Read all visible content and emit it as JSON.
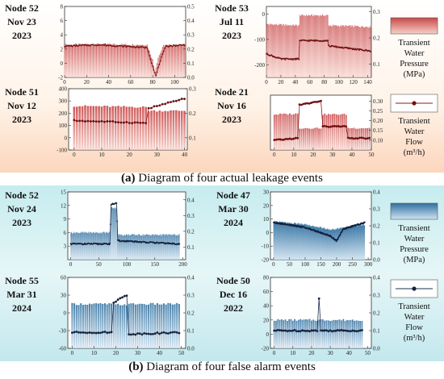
{
  "captions": {
    "a_letter": "(a)",
    "a_text": "Diagram of four actual leakage events",
    "b_letter": "(b)",
    "b_text": "Diagram of four false alarm events"
  },
  "legend_a": {
    "pressure_lines": [
      "Transient",
      "Water",
      "Pressure",
      "(MPa)"
    ],
    "flow_lines": [
      "Transient",
      "Water",
      "Flow",
      "(m³/h)"
    ]
  },
  "legend_b": {
    "pressure_lines": [
      "Transient",
      "Water",
      "Pressure",
      "(MPa)"
    ],
    "flow_lines": [
      "Transient",
      "Water",
      "Flow",
      "(m³/h)"
    ]
  },
  "colors": {
    "red_bar_top": "#c84848",
    "red_bar_bottom": "#f7d0c8",
    "red_flow_line": "#8b1a1a",
    "blue_bar_top": "#2f6fa0",
    "blue_bar_bottom": "#cfe3f0",
    "blue_flow_line": "#1b2f4f",
    "section_a_bg_top": "#fde2cf",
    "section_b_bg": "#c8ecef"
  },
  "chart_data": [
    {
      "type": "bar",
      "id": "a1",
      "label_lines": [
        "Node 52",
        "Nov 23",
        "2023"
      ],
      "x_ticks": [
        "0",
        "20",
        "40",
        "60",
        "80",
        "100"
      ],
      "xlim": [
        0,
        110
      ],
      "y_left_ticks": [
        "-2",
        "0",
        "2",
        "4",
        "6",
        "8"
      ],
      "ylim_left": [
        -2,
        8
      ],
      "y_right_ticks": [
        "0.0",
        "0.1",
        "0.2",
        "0.3",
        "0.4",
        "0.5"
      ],
      "ylim_right": [
        0,
        0.5
      ],
      "series": [
        {
          "role": "pressure",
          "n": 110,
          "values": [
            [
              0,
              2.6
            ],
            [
              30,
              2.7
            ],
            [
              75,
              2.6
            ],
            [
              80,
              0.5
            ],
            [
              82,
              -1.2
            ],
            [
              85,
              0.8
            ],
            [
              90,
              2.5
            ],
            [
              110,
              2.6
            ]
          ]
        },
        {
          "role": "flow",
          "n": 110,
          "values": [
            [
              0,
              0.22
            ],
            [
              30,
              0.23
            ],
            [
              75,
              0.21
            ],
            [
              80,
              0.08
            ],
            [
              83,
              0.01
            ],
            [
              87,
              0.12
            ],
            [
              92,
              0.22
            ],
            [
              110,
              0.23
            ]
          ]
        }
      ]
    },
    {
      "type": "bar",
      "id": "a2",
      "label_lines": [
        "Node 53",
        "Jul 11",
        "2023"
      ],
      "x_ticks": [
        "0",
        "20",
        "40",
        "60",
        "80",
        "100",
        "120",
        "140"
      ],
      "xlim": [
        0,
        145
      ],
      "y_left_ticks": [
        "-200",
        "-100",
        "0"
      ],
      "ylim_left": [
        -250,
        30
      ],
      "y_right_ticks": [
        "0.1",
        "0.2",
        "0.3"
      ],
      "ylim_right": [
        0.05,
        0.32
      ],
      "series": [
        {
          "role": "pressure",
          "n": 145,
          "values": [
            [
              0,
              -40
            ],
            [
              45,
              -45
            ],
            [
              46,
              -5
            ],
            [
              85,
              -5
            ],
            [
              86,
              -45
            ],
            [
              145,
              -50
            ]
          ]
        },
        {
          "role": "flow",
          "n": 145,
          "values": [
            [
              0,
              0.14
            ],
            [
              20,
              0.12
            ],
            [
              45,
              0.12
            ],
            [
              46,
              0.19
            ],
            [
              85,
              0.19
            ],
            [
              86,
              0.17
            ],
            [
              145,
              0.15
            ]
          ]
        }
      ]
    },
    {
      "type": "bar",
      "id": "a3",
      "label_lines": [
        "Node 51",
        "Nov 12",
        "2023"
      ],
      "x_ticks": [
        "0",
        "10",
        "20",
        "30",
        "40"
      ],
      "xlim": [
        -2,
        41
      ],
      "y_left_ticks": [
        "-100",
        "0",
        "100",
        "200",
        "300",
        "400"
      ],
      "ylim_left": [
        -100,
        400
      ],
      "y_right_ticks": [
        "0.1",
        "0.2",
        "0.3"
      ],
      "ylim_right": [
        0.05,
        0.3
      ],
      "series": [
        {
          "role": "pressure",
          "n": 41,
          "values": [
            [
              0,
              260
            ],
            [
              26,
              250
            ],
            [
              27,
              220
            ],
            [
              40,
              220
            ]
          ]
        },
        {
          "role": "flow",
          "n": 41,
          "values": [
            [
              0,
              0.17
            ],
            [
              26,
              0.16
            ],
            [
              27,
              0.22
            ],
            [
              40,
              0.26
            ]
          ]
        }
      ]
    },
    {
      "type": "bar",
      "id": "a4",
      "label_lines": [
        "Node 21",
        "Nov 16",
        "2023"
      ],
      "x_ticks": [
        "0",
        "10",
        "20",
        "30",
        "40",
        "50"
      ],
      "xlim": [
        -2,
        50
      ],
      "y_left_ticks": [],
      "ylim_left": [
        0,
        10
      ],
      "y_right_ticks": [
        "0.10",
        "0.15",
        "0.20",
        "0.25",
        "0.30"
      ],
      "ylim_right": [
        0.05,
        0.33
      ],
      "series": [
        {
          "role": "pressure",
          "n": 50,
          "values": [
            [
              0,
              6.5
            ],
            [
              12,
              6.6
            ],
            [
              13,
              4
            ],
            [
              24,
              4
            ],
            [
              25,
              6.5
            ],
            [
              37,
              6.5
            ],
            [
              38,
              4
            ],
            [
              50,
              4
            ]
          ]
        },
        {
          "role": "flow",
          "n": 50,
          "values": [
            [
              0,
              0.1
            ],
            [
              12,
              0.11
            ],
            [
              13,
              0.28
            ],
            [
              24,
              0.3
            ],
            [
              25,
              0.17
            ],
            [
              37,
              0.17
            ],
            [
              38,
              0.11
            ],
            [
              50,
              0.11
            ]
          ]
        }
      ]
    },
    {
      "type": "bar",
      "id": "b1",
      "label_lines": [
        "Node 52",
        "Nov 24",
        "2023"
      ],
      "x_ticks": [
        "0",
        "50",
        "100",
        "150",
        "200"
      ],
      "xlim": [
        -5,
        205
      ],
      "y_left_ticks": [
        "3",
        "6",
        "9",
        "12",
        "15"
      ],
      "ylim_left": [
        0,
        15
      ],
      "y_right_ticks": [
        "0.1",
        "0.2",
        "0.3",
        "0.4"
      ],
      "ylim_right": [
        0.02,
        0.45
      ],
      "series": [
        {
          "role": "pressure",
          "n": 195,
          "values": [
            [
              0,
              6
            ],
            [
              70,
              6
            ],
            [
              72,
              11.5
            ],
            [
              82,
              11.5
            ],
            [
              84,
              5.5
            ],
            [
              190,
              5.5
            ]
          ]
        },
        {
          "role": "flow",
          "n": 195,
          "values": [
            [
              0,
              0.12
            ],
            [
              70,
              0.12
            ],
            [
              72,
              0.37
            ],
            [
              82,
              0.38
            ],
            [
              84,
              0.14
            ],
            [
              190,
              0.12
            ]
          ]
        }
      ]
    },
    {
      "type": "bar",
      "id": "b2",
      "label_lines": [
        "Node 47",
        "Mar 30",
        "2024"
      ],
      "x_ticks": [
        "0",
        "50",
        "100",
        "150",
        "200",
        "250",
        "300"
      ],
      "xlim": [
        -10,
        310
      ],
      "y_left_ticks": [
        "-20",
        "-10",
        "0",
        "10",
        "20",
        "30"
      ],
      "ylim_left": [
        -20,
        30
      ],
      "y_right_ticks": [
        "0.0",
        "0.1",
        "0.2",
        "0.3",
        "0.4"
      ],
      "ylim_right": [
        0,
        0.4
      ],
      "series": [
        {
          "role": "pressure",
          "n": 290,
          "values": [
            [
              0,
              8
            ],
            [
              100,
              6
            ],
            [
              180,
              2
            ],
            [
              210,
              3
            ],
            [
              290,
              6
            ]
          ]
        },
        {
          "role": "flow",
          "n": 290,
          "values": [
            [
              0,
              0.22
            ],
            [
              100,
              0.19
            ],
            [
              180,
              0.14
            ],
            [
              200,
              0.11
            ],
            [
              220,
              0.18
            ],
            [
              290,
              0.22
            ]
          ]
        }
      ]
    },
    {
      "type": "bar",
      "id": "b3",
      "label_lines": [
        "Node 55",
        "Mar 31",
        "2024"
      ],
      "x_ticks": [
        "0",
        "10",
        "20",
        "30",
        "40",
        "50"
      ],
      "xlim": [
        -2,
        52
      ],
      "y_left_ticks": [
        "-60",
        "-30",
        "0",
        "30",
        "60"
      ],
      "ylim_left": [
        -60,
        60
      ],
      "y_right_ticks": [
        "0.0",
        "0.1",
        "0.2",
        "0.3",
        "0.4"
      ],
      "ylim_right": [
        0,
        0.4
      ],
      "series": [
        {
          "role": "pressure",
          "n": 50,
          "values": [
            [
              0,
              15
            ],
            [
              18,
              15
            ],
            [
              19,
              14
            ],
            [
              26,
              14
            ],
            [
              27,
              15
            ],
            [
              50,
              15
            ]
          ]
        },
        {
          "role": "flow",
          "n": 50,
          "values": [
            [
              0,
              0.09
            ],
            [
              18,
              0.09
            ],
            [
              19,
              0.26
            ],
            [
              25,
              0.3
            ],
            [
              26,
              0.08
            ],
            [
              50,
              0.09
            ]
          ]
        }
      ]
    },
    {
      "type": "bar",
      "id": "b4",
      "label_lines": [
        "Node 50",
        "Dec 16",
        "2022"
      ],
      "x_ticks": [
        "0",
        "10",
        "20",
        "30",
        "40",
        "50"
      ],
      "xlim": [
        -2,
        52
      ],
      "y_left_ticks": [
        "-20",
        "0",
        "20",
        "40",
        "60",
        "80"
      ],
      "ylim_left": [
        -20,
        80
      ],
      "y_right_ticks": [
        "0.0",
        "0.1",
        "0.2",
        "0.3",
        "0.4"
      ],
      "ylim_right": [
        0,
        0.4
      ],
      "series": [
        {
          "role": "pressure",
          "n": 48,
          "values": [
            [
              0,
              20
            ],
            [
              48,
              20
            ]
          ]
        },
        {
          "role": "flow",
          "n": 48,
          "values": [
            [
              0,
              0.1
            ],
            [
              23,
              0.1
            ],
            [
              24,
              0.28
            ],
            [
              25,
              0.1
            ],
            [
              48,
              0.1
            ]
          ]
        }
      ]
    }
  ]
}
